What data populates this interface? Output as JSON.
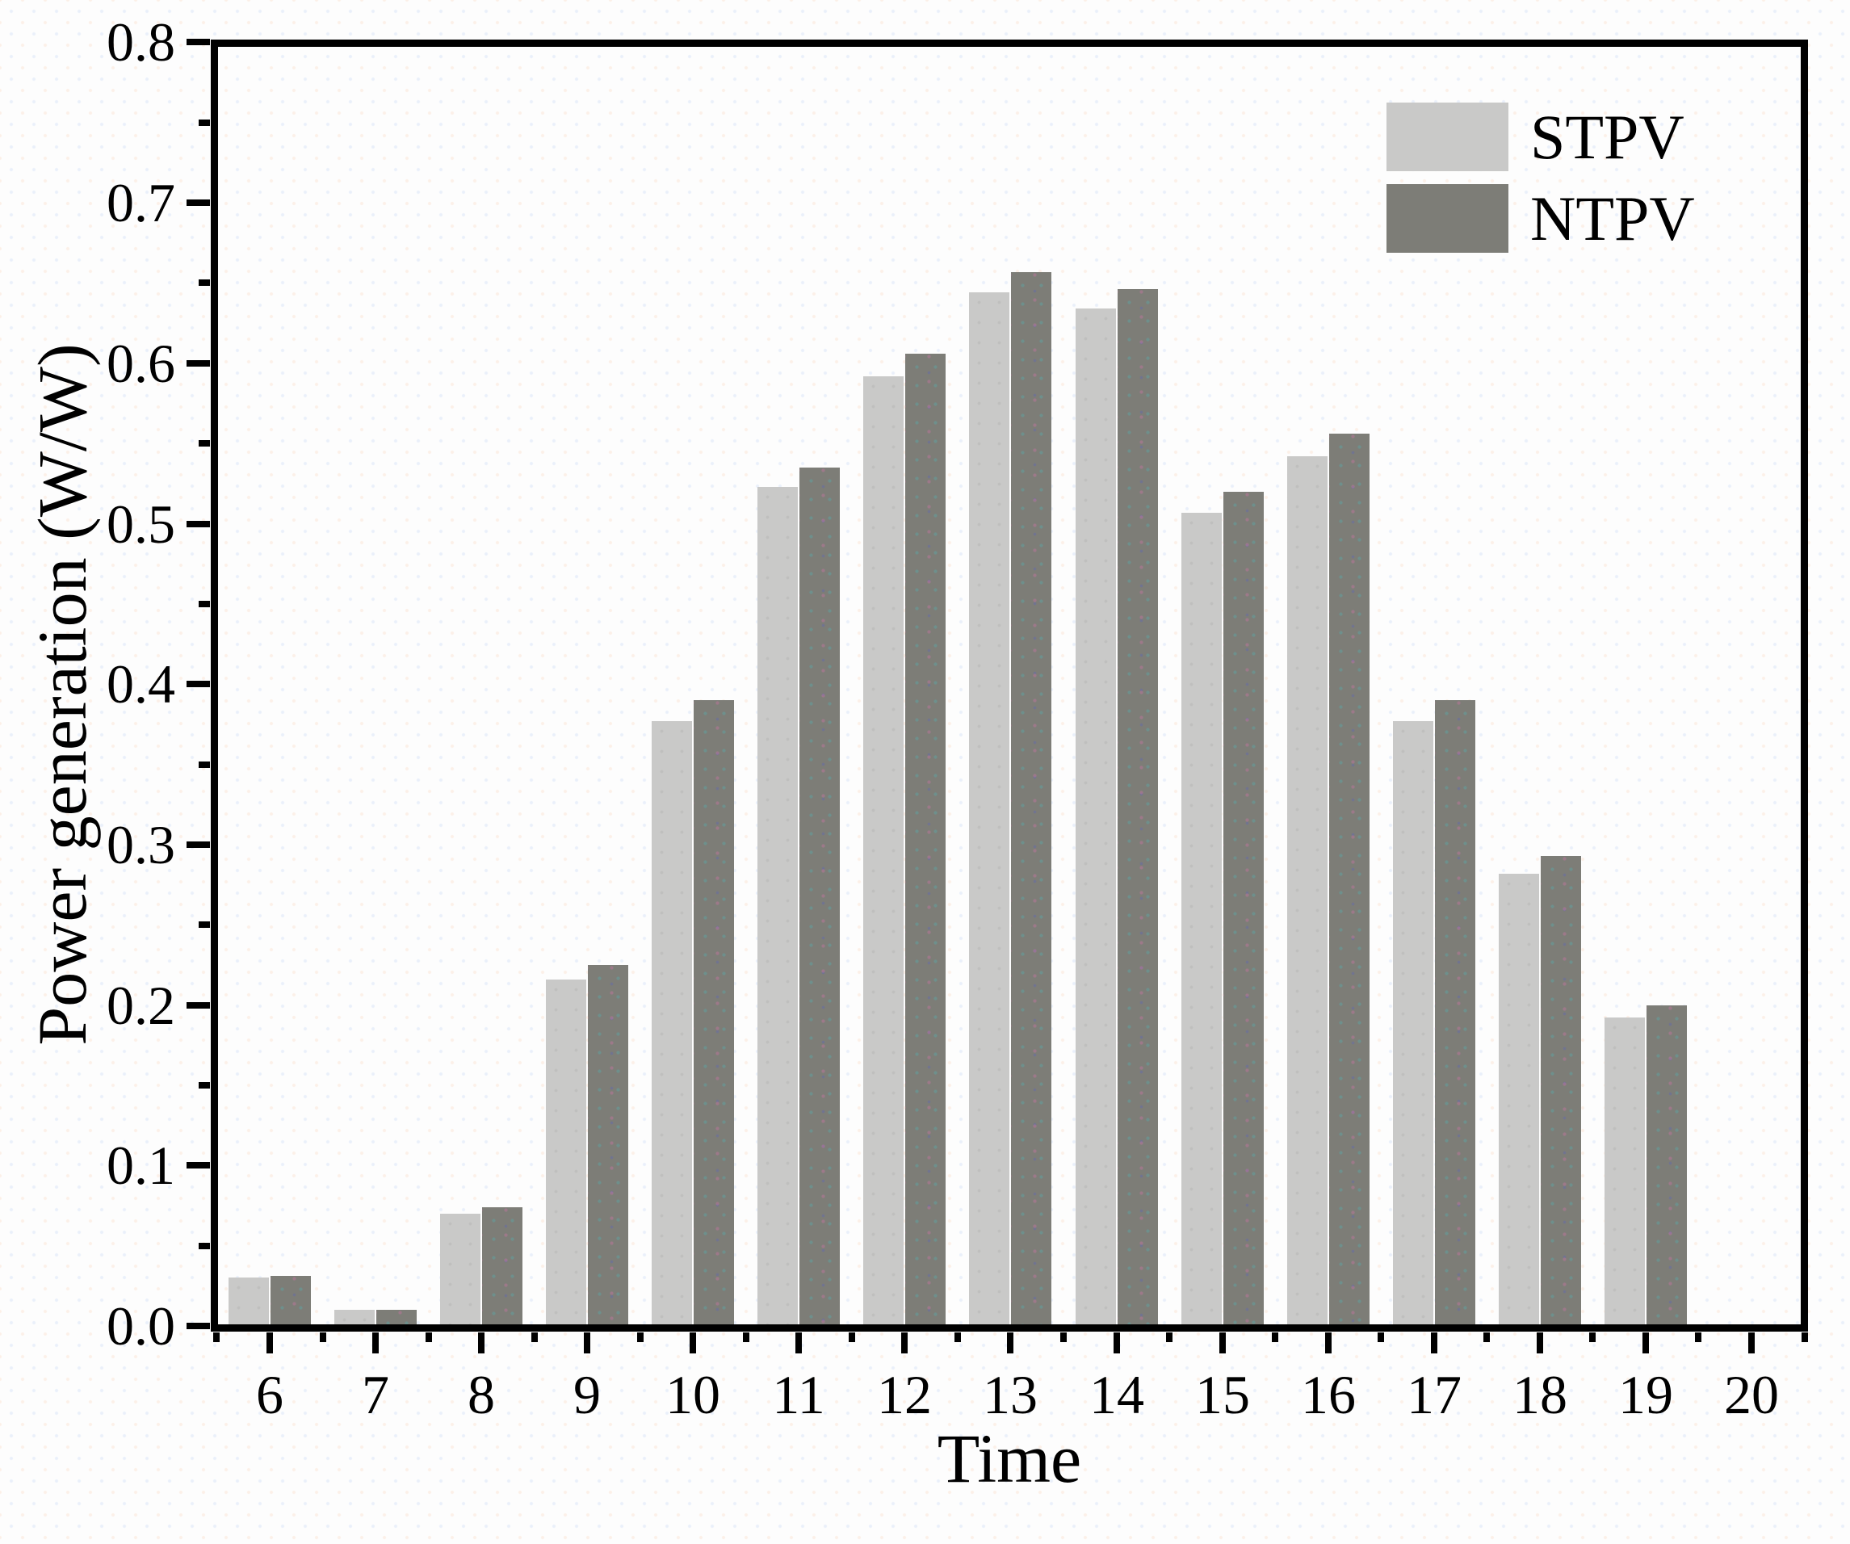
{
  "colors": {
    "background": "#fdfdfd",
    "axis": "#000000",
    "stpv_bar": "#c9c9c8",
    "ntpv_bar": "#7d7d77"
  },
  "legend": {
    "position": "upper-right",
    "items": [
      {
        "label": "STPV",
        "color": "#c9c9c8"
      },
      {
        "label": "NTPV",
        "color": "#7d7d77"
      }
    ]
  },
  "chart_data": {
    "type": "bar",
    "title": "",
    "xlabel": "Time",
    "ylabel": "Power generation (W/W)",
    "categories": [
      6,
      7,
      8,
      9,
      10,
      11,
      12,
      13,
      14,
      15,
      16,
      17,
      18,
      19,
      20
    ],
    "series": [
      {
        "name": "STPV",
        "color": "#c9c9c8",
        "values": [
          0.03,
          0.01,
          0.07,
          0.216,
          0.377,
          0.523,
          0.592,
          0.644,
          0.634,
          0.507,
          0.542,
          0.377,
          0.282,
          0.192,
          null
        ]
      },
      {
        "name": "NTPV",
        "color": "#7d7d77",
        "values": [
          0.031,
          0.01,
          0.074,
          0.225,
          0.39,
          0.535,
          0.606,
          0.657,
          0.646,
          0.52,
          0.556,
          0.39,
          0.293,
          0.2,
          null
        ]
      }
    ],
    "ylim": [
      0,
      0.8
    ],
    "y_major_step": 0.1,
    "y_minor_step": 0.05,
    "y_tick_labels": [
      "0.0",
      "0.1",
      "0.2",
      "0.3",
      "0.4",
      "0.5",
      "0.6",
      "0.7",
      "0.8"
    ],
    "x_tick_labels": [
      "6",
      "7",
      "8",
      "9",
      "10",
      "11",
      "12",
      "13",
      "14",
      "15",
      "16",
      "17",
      "18",
      "19",
      "20"
    ],
    "x_range": [
      5.5,
      20.5
    ],
    "grid": false,
    "legend_position": "upper right"
  }
}
